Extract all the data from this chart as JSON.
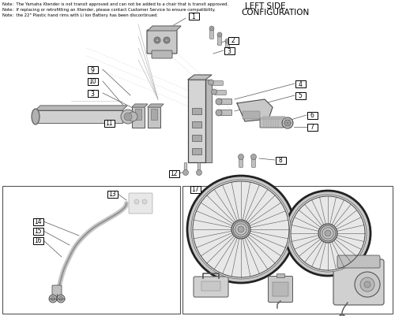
{
  "title_line1": "LEFT SIDE",
  "title_line2": "CONFIGURATION",
  "notes": [
    "Note:  The Yamaha Xtender is not transit approved and can not be added to a chair that is transit approved.",
    "Note:  If replacing or retrofitting an Xtender, please contact Customer Service to ensure compatibility.",
    "Note:  the 22\" Plastic hand rims with Li Ion Battery has been discontinued."
  ],
  "bg": "#ffffff",
  "line_color": "#555555",
  "label_bg": "#ffffff",
  "label_edge": "#000000",
  "part_color": "#c8c8c8",
  "part_edge": "#555555"
}
